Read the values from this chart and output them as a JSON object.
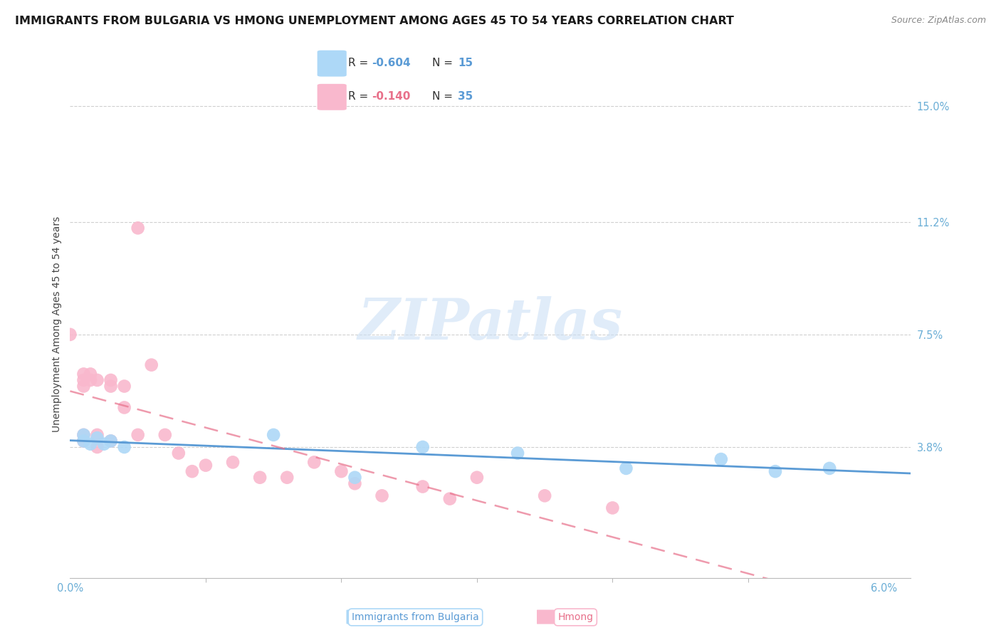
{
  "title": "IMMIGRANTS FROM BULGARIA VS HMONG UNEMPLOYMENT AMONG AGES 45 TO 54 YEARS CORRELATION CHART",
  "source": "Source: ZipAtlas.com",
  "ylabel": "Unemployment Among Ages 45 to 54 years",
  "y_tick_labels": [
    "15.0%",
    "11.2%",
    "7.5%",
    "3.8%"
  ],
  "y_tick_values": [
    0.15,
    0.112,
    0.075,
    0.038
  ],
  "x_tick_major": [
    0.0,
    0.06
  ],
  "x_tick_major_labels": [
    "0.0%",
    "6.0%"
  ],
  "x_tick_minor": [
    0.01,
    0.02,
    0.03,
    0.04,
    0.05
  ],
  "xlim": [
    0.0,
    0.062
  ],
  "ylim": [
    -0.005,
    0.162
  ],
  "watermark_text": "ZIPatlas",
  "legend_R_bulgaria": "-0.604",
  "legend_N_bulgaria": "15",
  "legend_R_hmong": "-0.140",
  "legend_N_hmong": "35",
  "color_bulgaria": "#add8f7",
  "color_hmong": "#f9b8cd",
  "line_color_bulgaria": "#5b9bd5",
  "line_color_hmong": "#e8708a",
  "line_color_axis": "#6baed6",
  "bulgaria_x": [
    0.001,
    0.001,
    0.0015,
    0.002,
    0.0025,
    0.003,
    0.004,
    0.015,
    0.021,
    0.026,
    0.033,
    0.041,
    0.048,
    0.052,
    0.056
  ],
  "bulgaria_y": [
    0.042,
    0.04,
    0.039,
    0.041,
    0.039,
    0.04,
    0.038,
    0.042,
    0.028,
    0.038,
    0.036,
    0.031,
    0.034,
    0.03,
    0.031
  ],
  "hmong_x": [
    0.0,
    0.001,
    0.001,
    0.001,
    0.001,
    0.001,
    0.0015,
    0.0015,
    0.002,
    0.002,
    0.002,
    0.003,
    0.003,
    0.003,
    0.004,
    0.004,
    0.005,
    0.005,
    0.006,
    0.007,
    0.008,
    0.009,
    0.01,
    0.012,
    0.014,
    0.016,
    0.018,
    0.02,
    0.021,
    0.023,
    0.026,
    0.028,
    0.03,
    0.035,
    0.04
  ],
  "hmong_y": [
    0.075,
    0.062,
    0.06,
    0.058,
    0.042,
    0.04,
    0.062,
    0.06,
    0.06,
    0.042,
    0.038,
    0.06,
    0.058,
    0.04,
    0.058,
    0.051,
    0.11,
    0.042,
    0.065,
    0.042,
    0.036,
    0.03,
    0.032,
    0.033,
    0.028,
    0.028,
    0.033,
    0.03,
    0.026,
    0.022,
    0.025,
    0.021,
    0.028,
    0.022,
    0.018
  ],
  "background_color": "#ffffff",
  "grid_color": "#d0d0d0",
  "title_fontsize": 11.5,
  "source_fontsize": 9,
  "axis_label_fontsize": 10,
  "tick_label_fontsize": 10.5,
  "legend_fontsize": 11,
  "scatter_size": 180
}
